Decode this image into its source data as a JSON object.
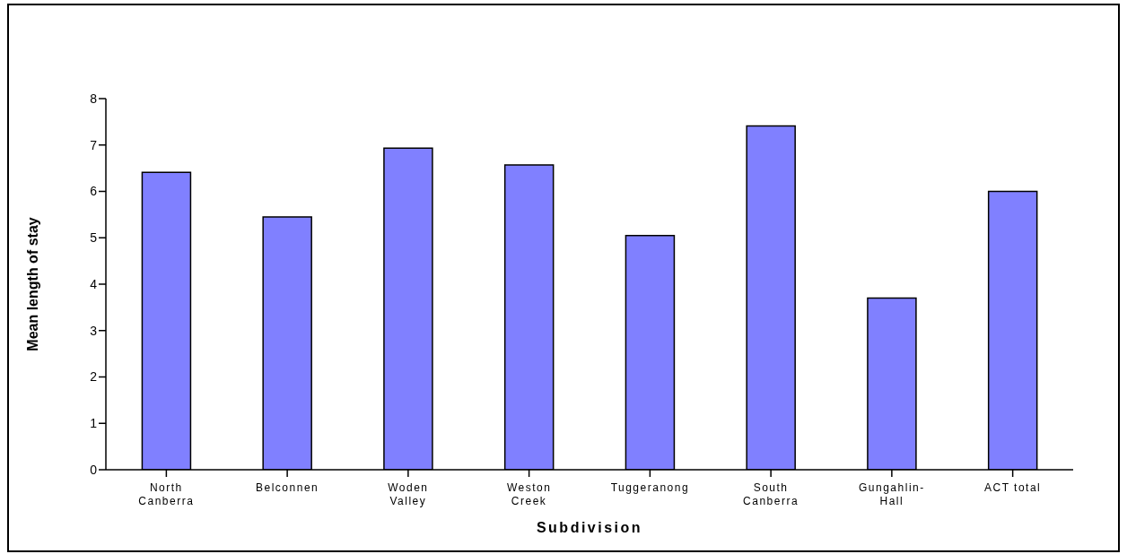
{
  "chart_data": {
    "type": "bar",
    "xlabel": "Subdivision",
    "ylabel": "Mean length of stay",
    "categories": [
      "North Canberra",
      "Belconnen",
      "Woden Valley",
      "Weston Creek",
      "Tuggeranong",
      "South Canberra",
      "Gungahlin-Hall",
      "ACT total"
    ],
    "values": [
      6.41,
      5.45,
      6.93,
      6.57,
      5.05,
      7.41,
      3.7,
      6.0
    ],
    "color": "#8080ff",
    "ylim": [
      0,
      8
    ],
    "yticks": [
      0,
      1,
      2,
      3,
      4,
      5,
      6,
      7,
      8
    ]
  }
}
